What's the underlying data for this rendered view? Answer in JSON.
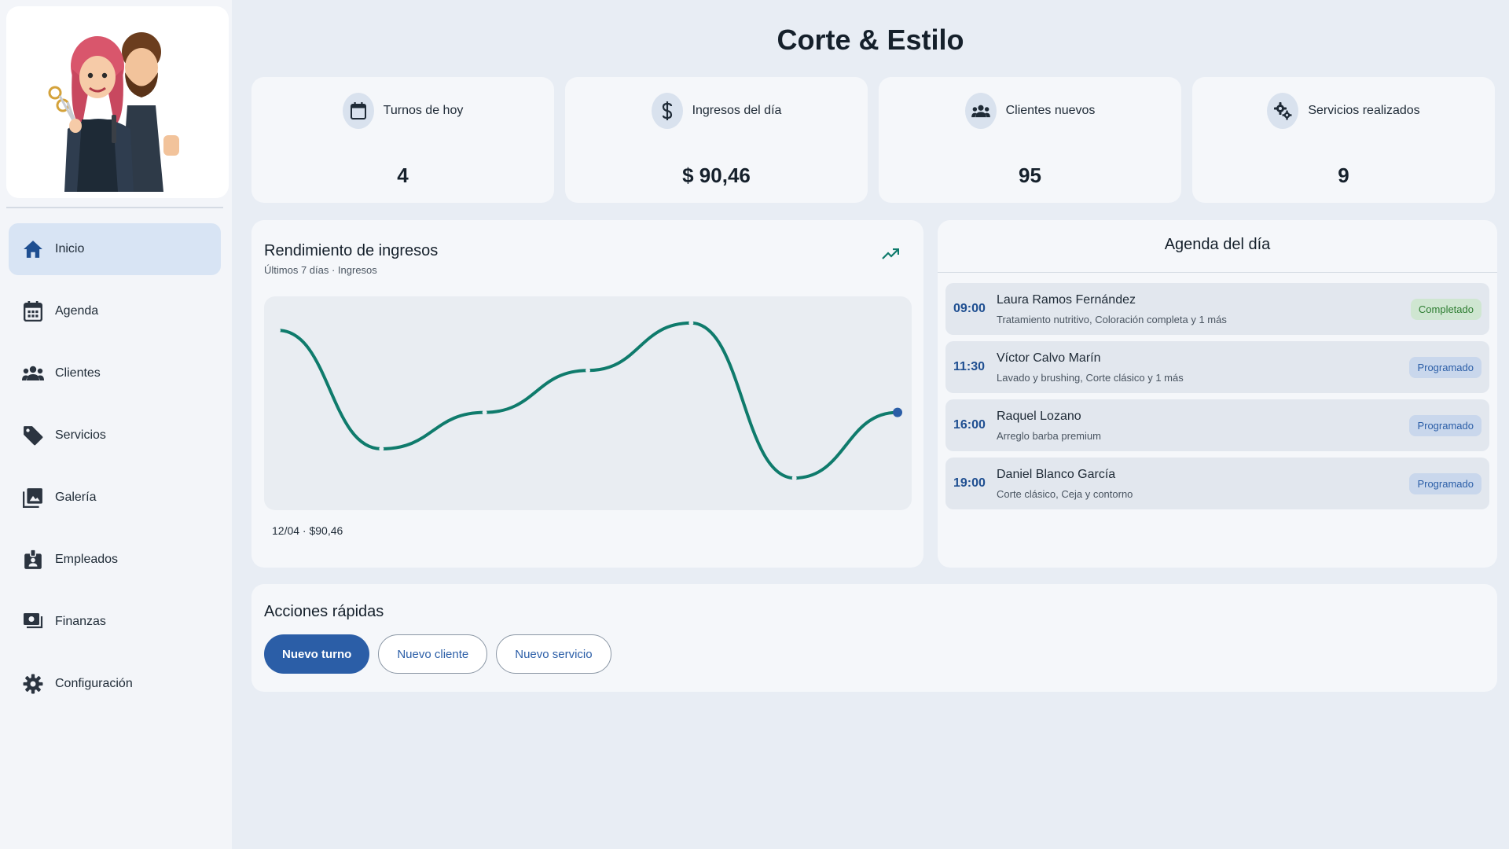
{
  "app": {
    "title": "Corte & Estilo"
  },
  "sidebar": {
    "items": [
      {
        "label": "Inicio",
        "icon": "home-icon",
        "active": true
      },
      {
        "label": "Agenda",
        "icon": "calendar-icon",
        "active": false
      },
      {
        "label": "Clientes",
        "icon": "people-icon",
        "active": false
      },
      {
        "label": "Servicios",
        "icon": "tag-icon",
        "active": false
      },
      {
        "label": "Galería",
        "icon": "gallery-icon",
        "active": false
      },
      {
        "label": "Empleados",
        "icon": "badge-icon",
        "active": false
      },
      {
        "label": "Finanzas",
        "icon": "finance-icon",
        "active": false
      },
      {
        "label": "Configuración",
        "icon": "gear-icon",
        "active": false
      }
    ]
  },
  "stats": [
    {
      "label": "Turnos de hoy",
      "value": "4",
      "icon": "calendar-icon"
    },
    {
      "label": "Ingresos del día",
      "value": "$ 90,46",
      "icon": "dollar-icon"
    },
    {
      "label": "Clientes nuevos",
      "value": "95",
      "icon": "people-icon"
    },
    {
      "label": "Servicios realizados",
      "value": "9",
      "icon": "gears-icon"
    }
  ],
  "chart": {
    "title": "Rendimiento de ingresos",
    "subtitle": "Últimos 7 días · Ingresos",
    "caption": "12/04 · $90,46"
  },
  "chart_data": {
    "type": "line",
    "title": "Rendimiento de ingresos",
    "subtitle": "Últimos 7 días · Ingresos",
    "points": 7,
    "relative_values": [
      0.9,
      0.25,
      0.45,
      0.68,
      0.94,
      0.09,
      0.45
    ],
    "highlight": {
      "label": "12/04",
      "value": 90.46
    },
    "grid": false,
    "line_color": "#0f7b6c",
    "marker_color": "#2b5ea7"
  },
  "agenda": {
    "title": "Agenda del día",
    "items": [
      {
        "time": "09:00",
        "name": "Laura Ramos Fernández",
        "services": "Tratamiento nutritivo, Coloración completa y 1 más",
        "status": "Completado",
        "kind": "done"
      },
      {
        "time": "11:30",
        "name": "Víctor Calvo Marín",
        "services": "Lavado y brushing, Corte clásico y 1 más",
        "status": "Programado",
        "kind": "planned"
      },
      {
        "time": "16:00",
        "name": "Raquel Lozano",
        "services": "Arreglo barba premium",
        "status": "Programado",
        "kind": "planned"
      },
      {
        "time": "19:00",
        "name": "Daniel Blanco García",
        "services": "Corte clásico, Ceja y contorno",
        "status": "Programado",
        "kind": "planned"
      }
    ]
  },
  "actions": {
    "title": "Acciones rápidas",
    "buttons": [
      {
        "label": "Nuevo turno",
        "style": "primary"
      },
      {
        "label": "Nuevo cliente",
        "style": "outline"
      },
      {
        "label": "Nuevo servicio",
        "style": "outline"
      }
    ]
  },
  "colors": {
    "accent": "#2b5ea7",
    "chart_line": "#0f7b6c",
    "completed": "#2e7d32",
    "background": "#e8edf4"
  }
}
